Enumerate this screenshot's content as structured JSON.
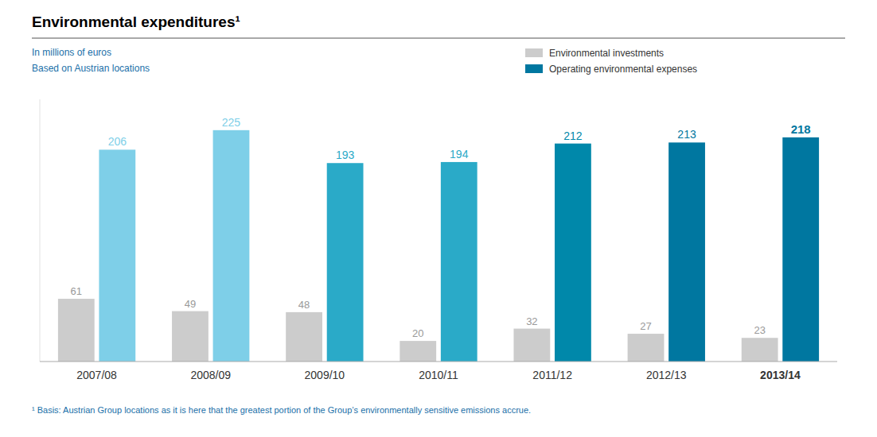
{
  "chart_data": {
    "type": "bar",
    "title": "Environmental expenditures¹",
    "subtitle": [
      "In millions of euros",
      "Based on Austrian locations"
    ],
    "footnote": "¹ Basis: Austrian Group locations as it is here that the greatest portion of the Group’s environmentally sensitive emissions accrue.",
    "categories": [
      "2007/08",
      "2008/09",
      "2009/10",
      "2010/11",
      "2011/12",
      "2012/13",
      "2013/14"
    ],
    "series": [
      {
        "name": "Environmental investments",
        "color": "#cccccc",
        "values": [
          61,
          49,
          48,
          20,
          32,
          27,
          23
        ]
      },
      {
        "name": "Operating environmental expenses",
        "colors": [
          "#7ecfe8",
          "#7ecfe8",
          "#2aaac8",
          "#2aaac8",
          "#0088aa",
          "#0077a0",
          "#0077a0"
        ],
        "values": [
          206,
          225,
          193,
          194,
          212,
          213,
          218
        ]
      }
    ],
    "ylim": [
      0,
      255
    ],
    "data_labels": true,
    "tick_labels": "x",
    "legend": "upper right"
  }
}
